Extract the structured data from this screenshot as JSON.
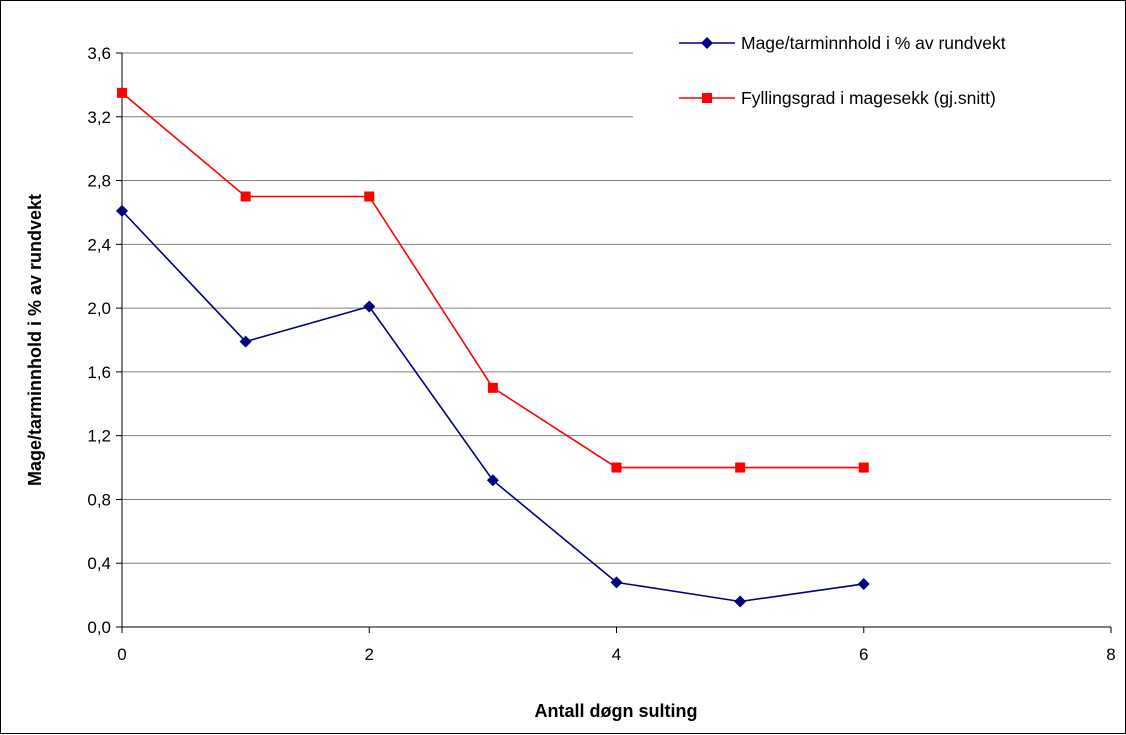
{
  "chart_data": {
    "type": "line",
    "title": "",
    "xlabel": "Antall døgn sulting",
    "ylabel": "Mage/tarminnhold i % av rundvekt",
    "xlim": [
      0,
      8
    ],
    "ylim": [
      0,
      3.6
    ],
    "x_ticks": [
      "0",
      "2",
      "4",
      "6",
      "8"
    ],
    "y_ticks": [
      "0,0",
      "0,4",
      "0,8",
      "1,2",
      "1,6",
      "2,0",
      "2,4",
      "2,8",
      "3,2",
      "3,6"
    ],
    "grid": "horizontal",
    "legend_position": "top-right",
    "series": [
      {
        "name": "Mage/tarminnhold i % av rundvekt",
        "color": "#000080",
        "marker": "diamond",
        "x": [
          0,
          1,
          2,
          3,
          4,
          5,
          6
        ],
        "y": [
          2.61,
          1.79,
          2.01,
          0.92,
          0.28,
          0.16,
          0.27
        ]
      },
      {
        "name": "Fyllingsgrad i magesekk (gj.snitt)",
        "color": "#ff0000",
        "marker": "square",
        "x": [
          0,
          1,
          2,
          3,
          4,
          5,
          6
        ],
        "y": [
          3.35,
          2.7,
          2.7,
          1.5,
          1.0,
          1.0,
          1.0
        ]
      }
    ]
  }
}
